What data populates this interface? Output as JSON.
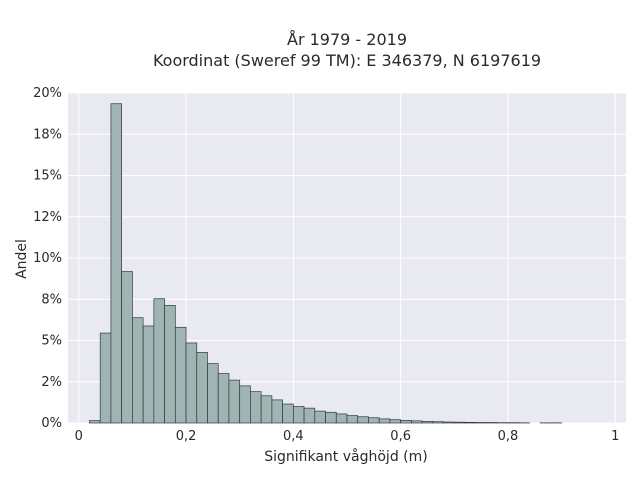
{
  "chart_data": {
    "type": "bar",
    "title_lines": [
      "År 1979 - 2019",
      "Koordinat (Sweref 99 TM): E 346379, N 6197619"
    ],
    "xlabel": "Signifikant våghöjd (m)",
    "ylabel": "Andel",
    "xlim": [
      -0.02,
      1.02
    ],
    "ylim": [
      0,
      0.2
    ],
    "x_ticks": [
      {
        "value": 0,
        "label": "0"
      },
      {
        "value": 0.2,
        "label": "0,2"
      },
      {
        "value": 0.4,
        "label": "0,4"
      },
      {
        "value": 0.6,
        "label": "0,6"
      },
      {
        "value": 0.8,
        "label": "0,8"
      },
      {
        "value": 1,
        "label": "1"
      }
    ],
    "y_ticks": [
      {
        "value": 0,
        "label": "0%"
      },
      {
        "value": 0.025,
        "label": "2%"
      },
      {
        "value": 0.05,
        "label": "5%"
      },
      {
        "value": 0.075,
        "label": "8%"
      },
      {
        "value": 0.1,
        "label": "10%"
      },
      {
        "value": 0.125,
        "label": "12%"
      },
      {
        "value": 0.15,
        "label": "15%"
      },
      {
        "value": 0.175,
        "label": "18%"
      },
      {
        "value": 0.2,
        "label": "20%"
      }
    ],
    "bin_width": 0.02,
    "bin_starts": [
      0.02,
      0.04,
      0.06,
      0.08,
      0.1,
      0.12,
      0.14,
      0.16,
      0.18,
      0.2,
      0.22,
      0.24,
      0.26,
      0.28,
      0.3,
      0.32,
      0.34,
      0.36,
      0.38,
      0.4,
      0.42,
      0.44,
      0.46,
      0.48,
      0.5,
      0.52,
      0.54,
      0.56,
      0.58,
      0.6,
      0.62,
      0.64,
      0.66,
      0.68,
      0.7,
      0.72,
      0.74,
      0.76,
      0.78,
      0.8,
      0.82,
      0.84,
      0.86,
      0.88
    ],
    "values": [
      0.0015,
      0.0545,
      0.1935,
      0.0918,
      0.0638,
      0.0588,
      0.0753,
      0.0713,
      0.058,
      0.0485,
      0.0428,
      0.036,
      0.03,
      0.026,
      0.0225,
      0.019,
      0.0165,
      0.014,
      0.0115,
      0.01,
      0.009,
      0.0072,
      0.0065,
      0.0055,
      0.0045,
      0.0038,
      0.0032,
      0.0025,
      0.002,
      0.0016,
      0.0013,
      0.001,
      0.0008,
      0.0006,
      0.0005,
      0.0004,
      0.0003,
      0.0003,
      0.0002,
      0.0002,
      0.0001,
      0.0,
      0.0001,
      0.0001
    ],
    "bar_color": "#9fb4b3",
    "bar_edge_color": "#2f3b3b",
    "plot_bg": "#e9e9f1",
    "grid": true
  }
}
